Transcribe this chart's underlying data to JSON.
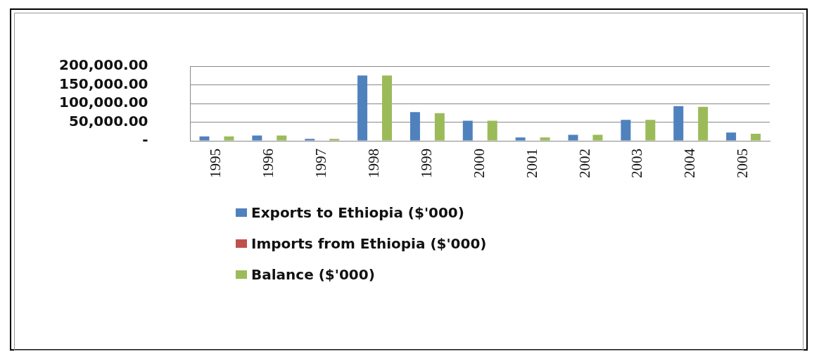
{
  "chart_data": {
    "type": "bar",
    "categories": [
      "1995",
      "1996",
      "1997",
      "1998",
      "1999",
      "2000",
      "2001",
      "2002",
      "2003",
      "2004",
      "2005"
    ],
    "series": [
      {
        "name": "Exports to Ethiopia ($'000)",
        "color": "#4f81bd",
        "values": [
          12000,
          14000,
          5000,
          175000,
          77000,
          54000,
          9000,
          16000,
          56000,
          93000,
          22000
        ]
      },
      {
        "name": "Imports from Ethiopia ($'000)",
        "color": "#c0504d",
        "values": [
          0,
          0,
          0,
          0,
          1000,
          0,
          0,
          0,
          0,
          0,
          1000
        ]
      },
      {
        "name": "Balance ($'000)",
        "color": "#9bbb59",
        "values": [
          12000,
          14000,
          5000,
          175000,
          74000,
          54000,
          9000,
          16000,
          56000,
          91000,
          19000
        ]
      }
    ],
    "ylim": [
      0,
      200000
    ],
    "yticks": [
      {
        "value": 0,
        "label": "-"
      },
      {
        "value": 50000,
        "label": "50,000.00"
      },
      {
        "value": 100000,
        "label": "100,000.00"
      },
      {
        "value": 150000,
        "label": "150,000.00"
      },
      {
        "value": 200000,
        "label": "200,000.00"
      }
    ],
    "grid": "y",
    "legend": "bottom"
  }
}
